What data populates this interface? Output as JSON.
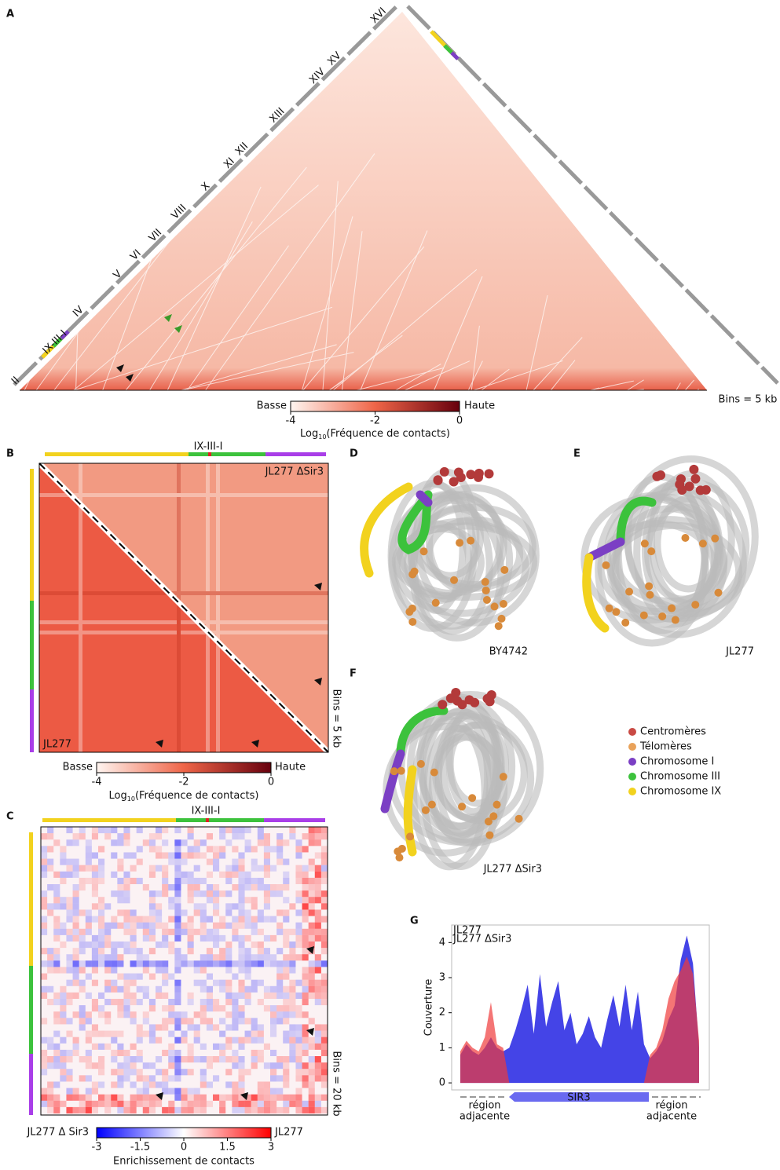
{
  "panel_labels": [
    "A",
    "B",
    "C",
    "D",
    "E",
    "F",
    "G"
  ],
  "panel_a": {
    "chromosomes": [
      "II",
      "IX-III-I",
      "IV",
      "V",
      "VI",
      "VII",
      "VIII",
      "X",
      "XI",
      "XII",
      "XIII",
      "XIV",
      "XV",
      "XVI"
    ],
    "bins_note": "Bins = 5 kb",
    "colorbar": {
      "low": "Basse",
      "high": "Haute",
      "lim": [
        -4,
        0
      ],
      "ticks": [
        -4,
        -2,
        0
      ],
      "label_prefix": "Log",
      "label_sub": "10",
      "label_suffix": "(Fréquence de contacts)"
    }
  },
  "panel_b": {
    "construct": "IX-III-I",
    "top_label": "JL277 ΔSir3",
    "bottom_label": "JL277",
    "bins_note": "Bins = 5 kb",
    "colorbar": {
      "low": "Basse",
      "high": "Haute",
      "lim": [
        -4,
        0
      ],
      "ticks": [
        -4,
        -2,
        0
      ],
      "label_prefix": "Log",
      "label_sub": "10",
      "label_suffix": "(Fréquence de contacts)"
    }
  },
  "panel_c": {
    "construct": "IX-III-I",
    "bins_note": "Bins = 20 kb",
    "colorbar": {
      "low": "JL277 Δ Sir3",
      "high": "JL277",
      "lim": [
        -3,
        3
      ],
      "ticks": [
        -3,
        -1.5,
        0,
        1.5,
        3
      ],
      "label": "Enrichissement de contacts"
    }
  },
  "structures": {
    "captions": [
      "BY4742",
      "JL277",
      "JL277 ΔSir3"
    ],
    "legend": [
      {
        "name": "Centromères",
        "color": "#c94a44"
      },
      {
        "name": "Télomères",
        "color": "#e9a25a"
      },
      {
        "name": "Chromosome I",
        "color": "#7b3fc4"
      },
      {
        "name": "Chromosome III",
        "color": "#3cc23c"
      },
      {
        "name": "Chromosome IX",
        "color": "#f2d21e"
      }
    ]
  },
  "chart_data": {
    "type": "area",
    "ylabel": "Couverture",
    "ylim": [
      -0.2,
      4.5
    ],
    "yticks": [
      0,
      1,
      2,
      3,
      4
    ],
    "gene": "SIR3",
    "flank_labels": [
      [
        "région",
        "adjacente"
      ],
      [
        "région",
        "adjacente"
      ]
    ],
    "series": [
      {
        "name": "JL277",
        "color": "#3a3ae6",
        "values": [
          0.8,
          1.1,
          0.9,
          0.8,
          1.0,
          1.3,
          1.0,
          0.9,
          1.0,
          1.5,
          2.1,
          2.8,
          1.4,
          3.1,
          1.6,
          2.3,
          2.9,
          1.5,
          2.0,
          1.1,
          1.4,
          1.9,
          1.3,
          1.0,
          1.8,
          2.5,
          1.6,
          2.8,
          1.5,
          2.6,
          1.1,
          0.7,
          0.9,
          1.2,
          1.8,
          2.2,
          3.5,
          4.2,
          3.4,
          1.0
        ]
      },
      {
        "name": "JL277 ΔSir3",
        "color": "#f03a3a",
        "values": [
          0.9,
          1.2,
          1.0,
          0.9,
          1.3,
          2.3,
          1.1,
          1.0,
          0,
          0,
          0,
          0,
          0,
          0,
          0,
          0,
          0,
          0,
          0,
          0,
          0,
          0,
          0,
          0,
          0,
          0,
          0,
          0,
          0,
          0,
          0,
          0.8,
          1.0,
          1.5,
          2.4,
          2.9,
          3.2,
          3.6,
          3.1,
          1.2
        ]
      }
    ]
  }
}
